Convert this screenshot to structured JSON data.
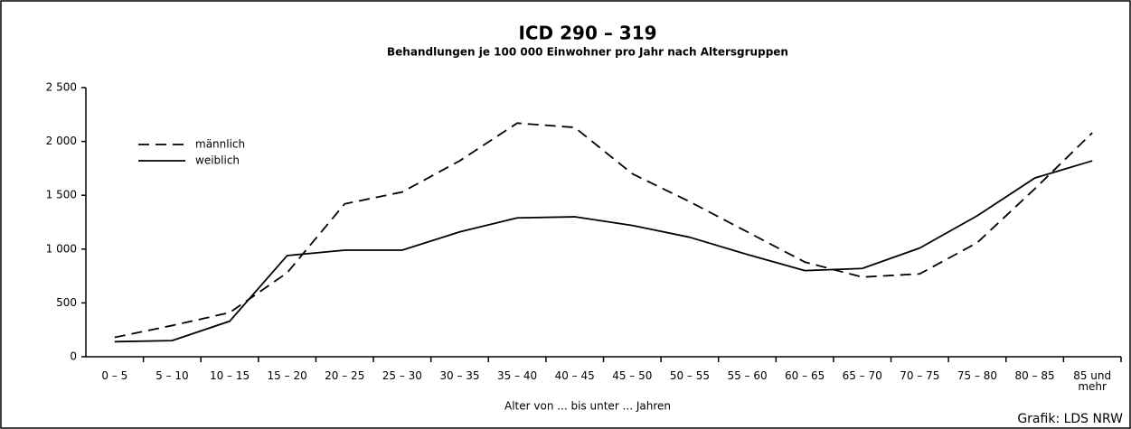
{
  "chart_data": {
    "type": "line",
    "title": "ICD 290 – 319",
    "subtitle": "Behandlungen je 100 000 Einwohner pro Jahr nach Altersgruppen",
    "x_label": "Alter von ... bis unter ... Jahren",
    "source": "Grafik: LDS NRW",
    "categories": [
      "0 – 5",
      "5 – 10",
      "10 – 15",
      "15 – 20",
      "20 – 25",
      "25 – 30",
      "30 – 35",
      "35 – 40",
      "40 – 45",
      "45 – 50",
      "50 – 55",
      "55 – 60",
      "60 – 65",
      "65 – 70",
      "70 – 75",
      "75 – 80",
      "80 – 85",
      "85 und mehr"
    ],
    "series": [
      {
        "name": "männlich",
        "color": "#000000",
        "line_style": "dashed",
        "values": [
          180,
          290,
          410,
          780,
          1420,
          1530,
          1820,
          2170,
          2130,
          1700,
          1440,
          1160,
          880,
          740,
          770,
          1060,
          1560,
          2080
        ]
      },
      {
        "name": "weiblich",
        "color": "#000000",
        "line_style": "solid",
        "values": [
          140,
          150,
          330,
          940,
          990,
          990,
          1160,
          1290,
          1300,
          1220,
          1110,
          950,
          800,
          820,
          1010,
          1310,
          1660,
          1820
        ]
      }
    ],
    "ylim": [
      0,
      2500
    ],
    "yticks": [
      0,
      500,
      {
        "value": 1000,
        "label": "1 000"
      },
      {
        "value": 1500,
        "label": "1 500"
      },
      {
        "value": 2000,
        "label": "2 000"
      },
      {
        "value": 2500,
        "label": "2 500"
      }
    ],
    "legend": "upper left"
  }
}
